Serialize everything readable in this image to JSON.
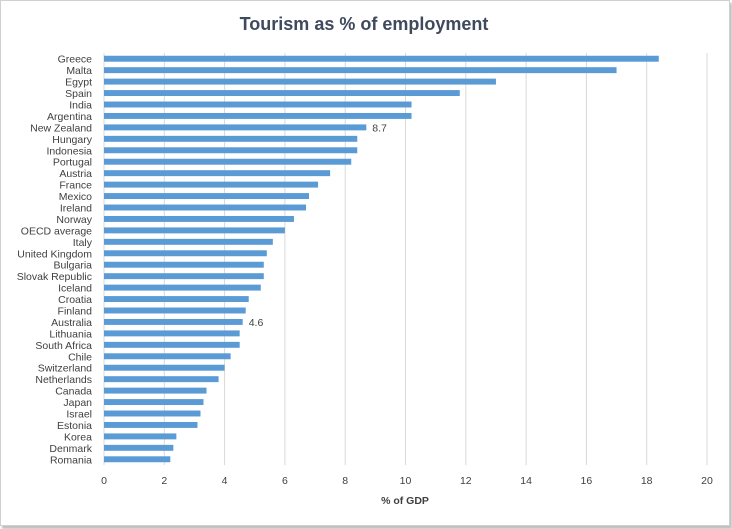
{
  "chart_data": {
    "type": "bar",
    "orientation": "horizontal",
    "title": "Tourism  as % of employment",
    "xlabel": "% of GDP",
    "ylabel": "",
    "xlim": [
      0,
      20
    ],
    "x_ticks": [
      0,
      2,
      4,
      6,
      8,
      10,
      12,
      14,
      16,
      18,
      20
    ],
    "grid": "vertical",
    "legend": "none",
    "bar_color": "#5b9bd5",
    "categories": [
      "Greece",
      "Malta",
      "Egypt",
      "Spain",
      "India",
      "Argentina",
      "New Zealand",
      "Hungary",
      "Indonesia",
      "Portugal",
      "Austria",
      "France",
      "Mexico",
      "Ireland",
      "Norway",
      "OECD average",
      "Italy",
      "United Kingdom",
      "Bulgaria",
      "Slovak Republic",
      "Iceland",
      "Croatia",
      "Finland",
      "Australia",
      "Lithuania",
      "South Africa",
      "Chile",
      "Switzerland",
      "Netherlands",
      "Canada",
      "Japan",
      "Israel",
      "Estonia",
      "Korea",
      "Denmark",
      "Romania"
    ],
    "values": [
      18.4,
      17.0,
      13.0,
      11.8,
      10.2,
      10.2,
      8.7,
      8.4,
      8.4,
      8.2,
      7.5,
      7.1,
      6.8,
      6.7,
      6.3,
      6.0,
      5.6,
      5.4,
      5.3,
      5.3,
      5.2,
      4.8,
      4.7,
      4.6,
      4.5,
      4.5,
      4.2,
      4.0,
      3.8,
      3.4,
      3.3,
      3.2,
      3.1,
      2.4,
      2.3,
      2.2
    ],
    "data_labels": [
      {
        "category": "New Zealand",
        "text": "8.7"
      },
      {
        "category": "Australia",
        "text": "4.6"
      }
    ]
  }
}
